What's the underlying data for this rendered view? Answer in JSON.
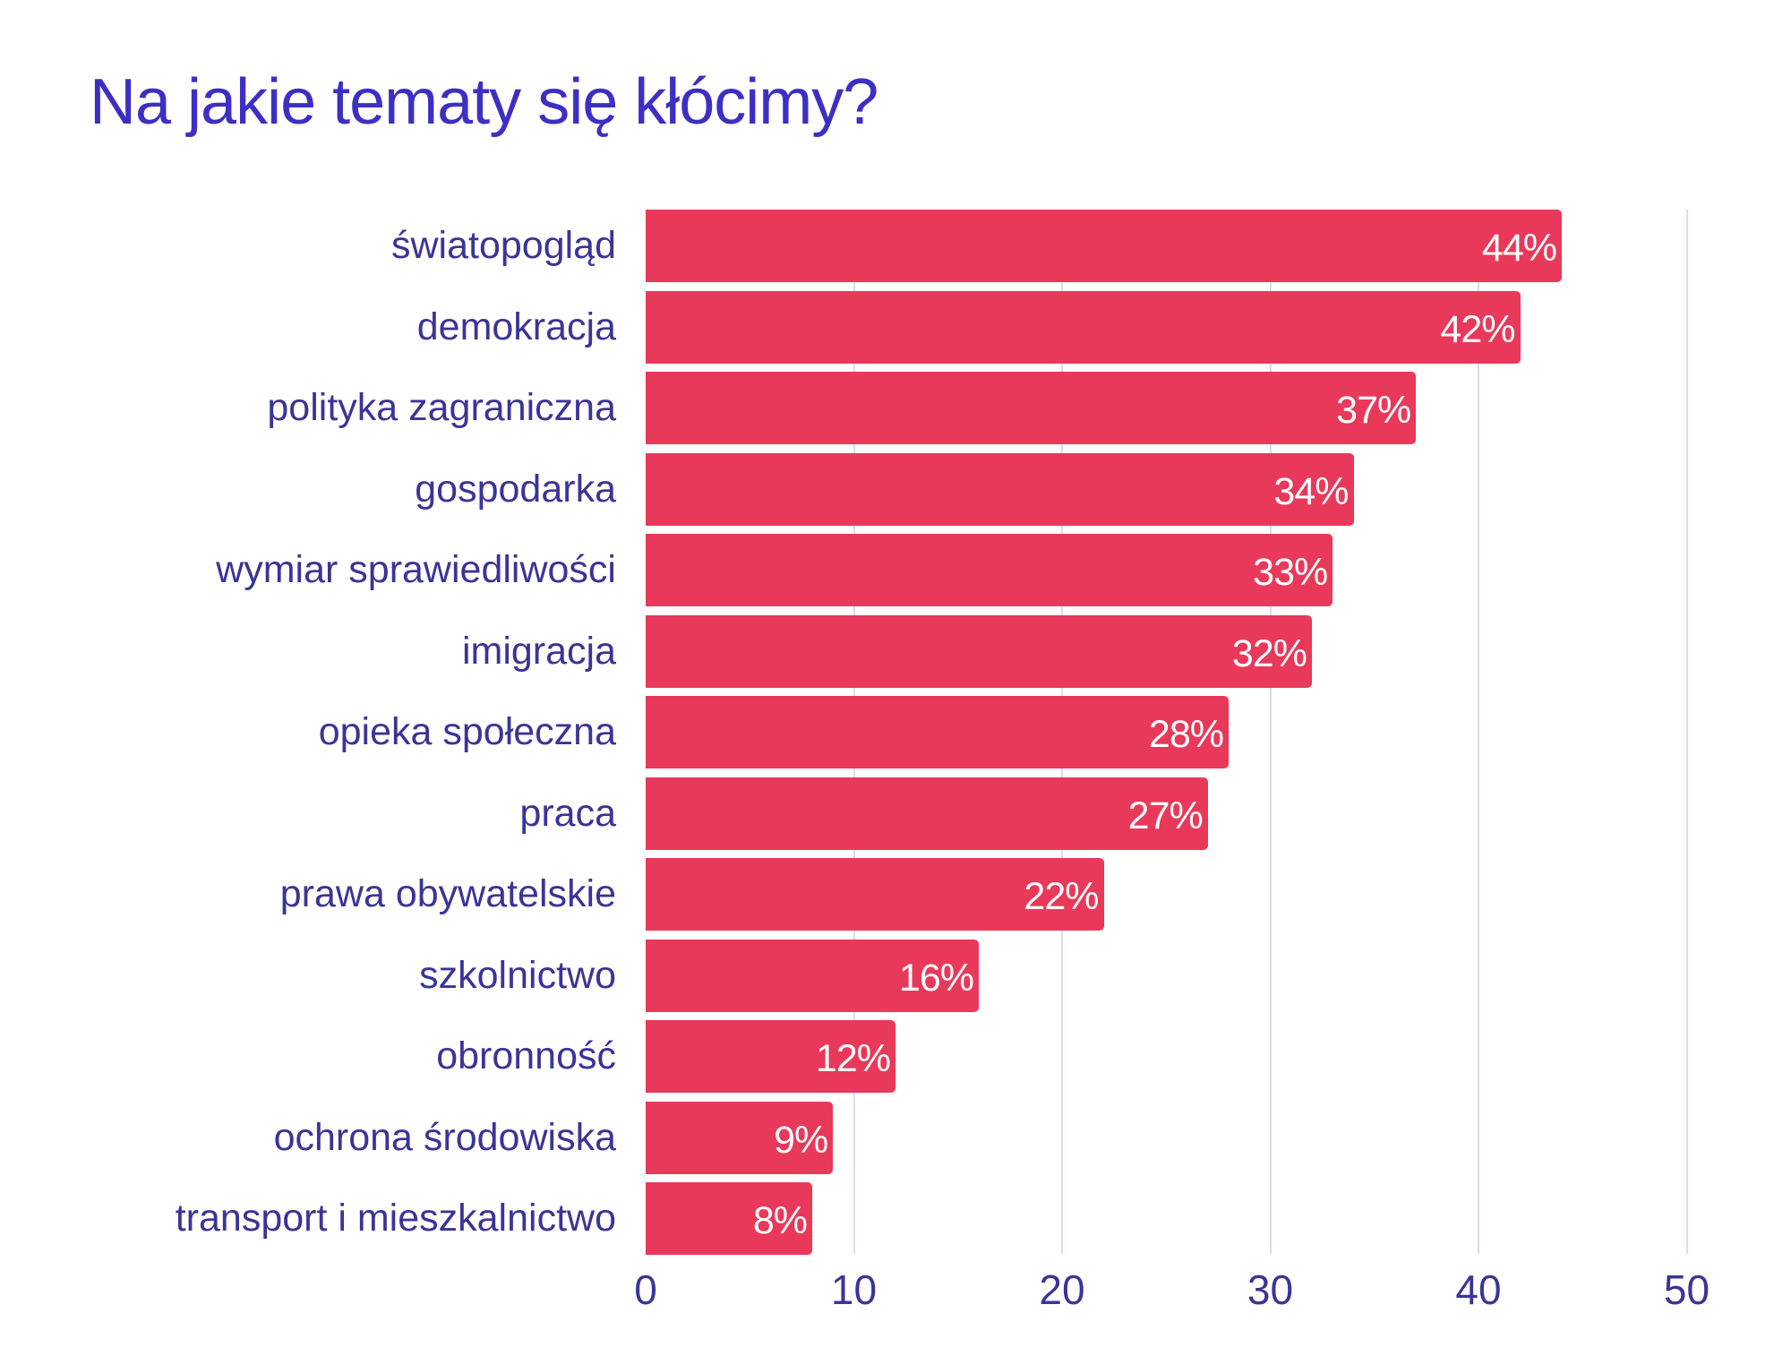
{
  "title": "Na jakie tematy się kłócimy?",
  "colors": {
    "title": "#3d2fc4",
    "bar": "#e9395a",
    "label": "#3b3497",
    "gridline": "#d9dcf0",
    "value_text": "#ffffff"
  },
  "axis": {
    "ticks": [
      "0",
      "10",
      "20",
      "30",
      "40",
      "50"
    ]
  },
  "bars": [
    {
      "label": "światopogląd",
      "value": 44,
      "value_label": "44%"
    },
    {
      "label": "demokracja",
      "value": 42,
      "value_label": "42%"
    },
    {
      "label": "polityka zagraniczna",
      "value": 37,
      "value_label": "37%"
    },
    {
      "label": "gospodarka",
      "value": 34,
      "value_label": "34%"
    },
    {
      "label": "wymiar sprawiedliwości",
      "value": 33,
      "value_label": "33%"
    },
    {
      "label": "imigracja",
      "value": 32,
      "value_label": "32%"
    },
    {
      "label": "opieka społeczna",
      "value": 28,
      "value_label": "28%"
    },
    {
      "label": "praca",
      "value": 27,
      "value_label": "27%"
    },
    {
      "label": "prawa obywatelskie",
      "value": 22,
      "value_label": "22%"
    },
    {
      "label": "szkolnictwo",
      "value": 16,
      "value_label": "16%"
    },
    {
      "label": "obronność",
      "value": 12,
      "value_label": "12%"
    },
    {
      "label": "ochrona środowiska",
      "value": 9,
      "value_label": "9%"
    },
    {
      "label": "transport i mieszkalnictwo",
      "value": 8,
      "value_label": "8%"
    }
  ],
  "chart_data": {
    "type": "bar",
    "orientation": "horizontal",
    "title": "Na jakie tematy się kłócimy?",
    "xlabel": "",
    "ylabel": "",
    "xlim": [
      0,
      50
    ],
    "xticks": [
      0,
      10,
      20,
      30,
      40,
      50
    ],
    "grid": true,
    "legend": null,
    "categories": [
      "światopogląd",
      "demokracja",
      "polityka zagraniczna",
      "gospodarka",
      "wymiar sprawiedliwości",
      "imigracja",
      "opieka społeczna",
      "praca",
      "prawa obywatelskie",
      "szkolnictwo",
      "obronność",
      "ochrona środowiska",
      "transport i mieszkalnictwo"
    ],
    "values": [
      44,
      42,
      37,
      34,
      33,
      32,
      28,
      27,
      22,
      16,
      12,
      9,
      8
    ],
    "data_labels": [
      "44%",
      "42%",
      "37%",
      "34%",
      "33%",
      "32%",
      "28%",
      "27%",
      "22%",
      "16%",
      "12%",
      "9%",
      "8%"
    ],
    "unit": "%"
  }
}
